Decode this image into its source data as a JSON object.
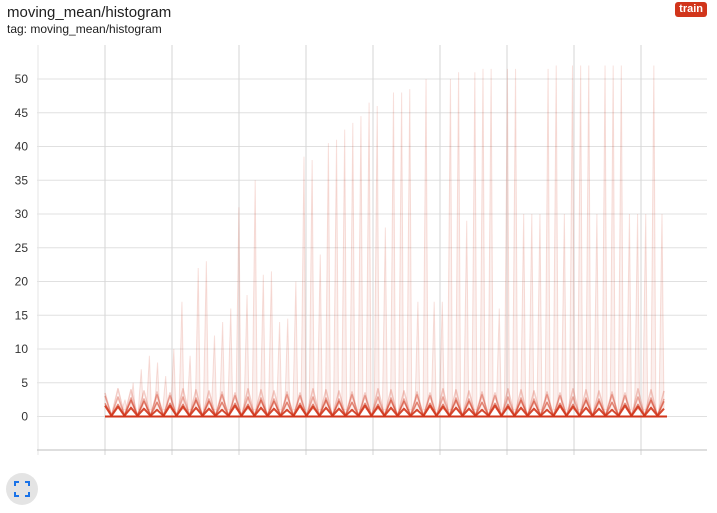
{
  "header": {
    "title": "moving_mean/histogram",
    "tag": "tag: moving_mean/histogram",
    "run_badge": "train"
  },
  "colors": {
    "series": "#d1351b",
    "badge": "#d1351b"
  },
  "icons": {
    "expand": "fullscreen-icon"
  },
  "chart_data": {
    "type": "histogram",
    "yticks": [
      "0",
      "5",
      "10",
      "15",
      "20",
      "25",
      "30",
      "35",
      "40",
      "45",
      "50"
    ],
    "ylim": [
      -5,
      55
    ],
    "grid": true,
    "series_color": "#d1351b",
    "spike_peaks": [
      2.5,
      5,
      7,
      9,
      8,
      6,
      10,
      17,
      9,
      22,
      23,
      12,
      14,
      16,
      31,
      18,
      35,
      21,
      21.5,
      14,
      14.5,
      20,
      38.5,
      38,
      24,
      40.5,
      41,
      42.5,
      43.5,
      44.5,
      46.5,
      46,
      28,
      48,
      48,
      48.5,
      17,
      50,
      17,
      17,
      50,
      51,
      29,
      51,
      51.5,
      51.5,
      16,
      51.5,
      51.5,
      30,
      30,
      30,
      51.5,
      52,
      30,
      52,
      52,
      52,
      30,
      52,
      52,
      52,
      30,
      30,
      30,
      52,
      30
    ]
  }
}
